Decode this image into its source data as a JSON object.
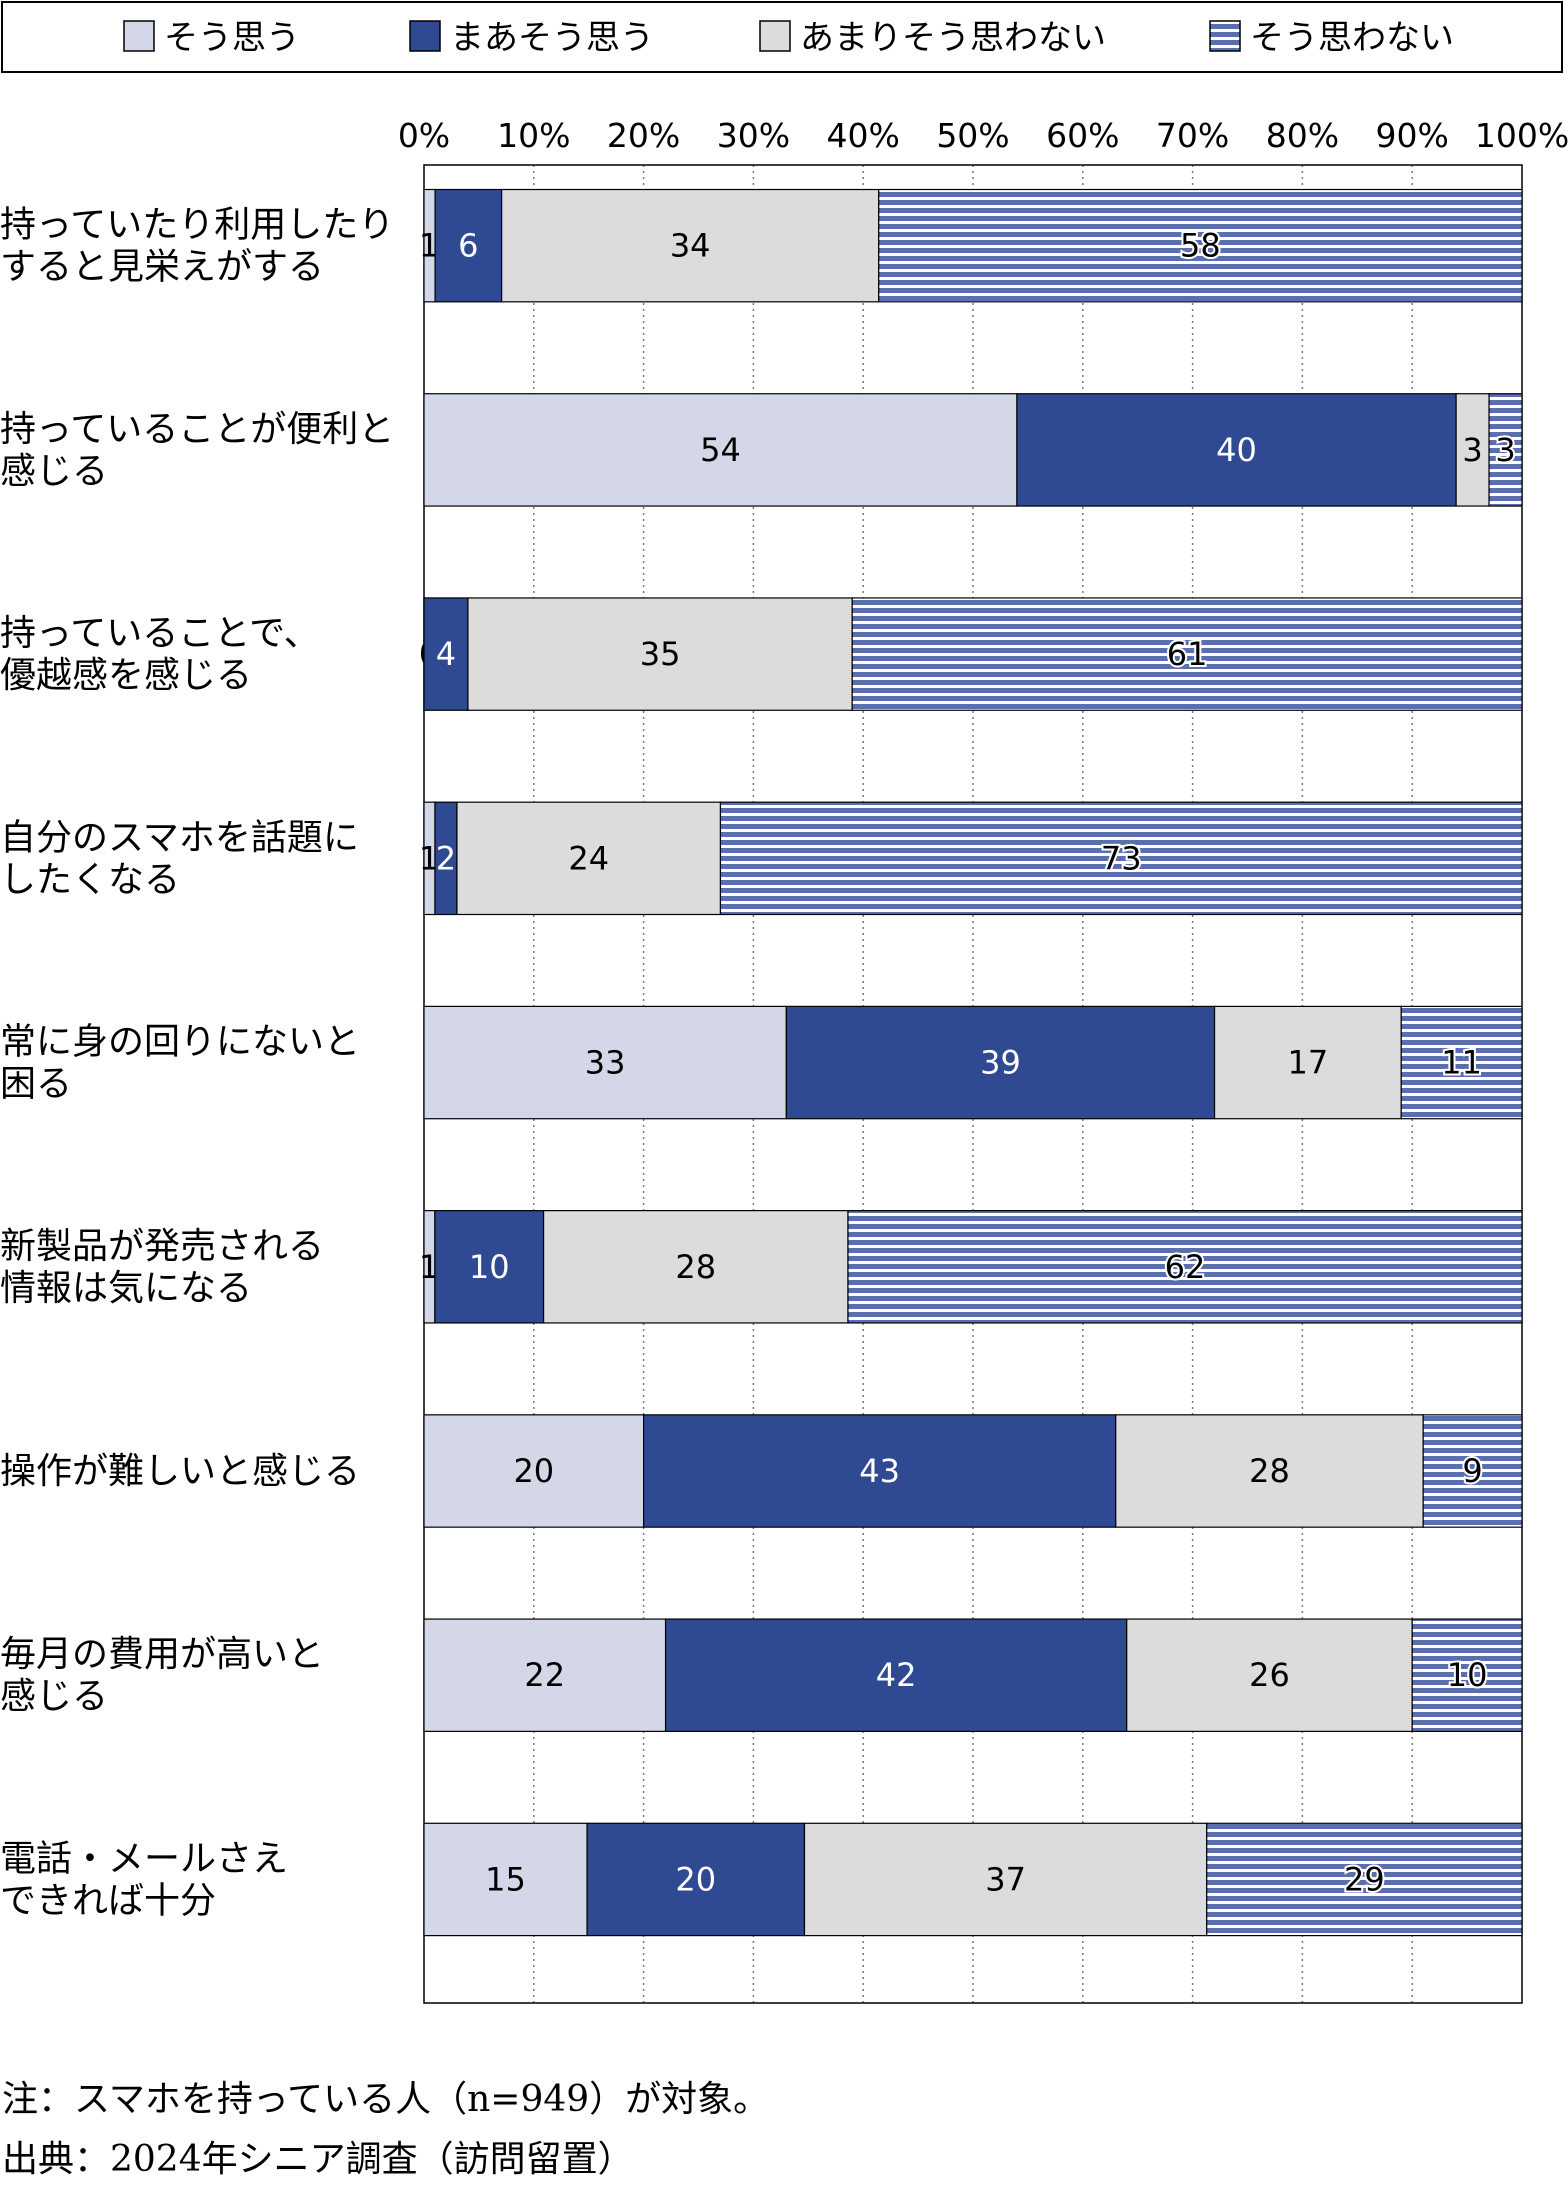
{
  "chart_data": {
    "type": "bar",
    "orientation": "horizontal",
    "stacked": true,
    "unit": "%",
    "xlim": [
      0,
      100
    ],
    "x_ticks": [
      "0%",
      "10%",
      "20%",
      "30%",
      "40%",
      "50%",
      "60%",
      "70%",
      "80%",
      "90%",
      "100%"
    ],
    "grid": true,
    "legend_position": "top",
    "categories": [
      [
        "持っていたり利用したり",
        "すると見栄えがする"
      ],
      [
        "持っていることが便利と",
        "感じる"
      ],
      [
        "持っていることで、",
        "優越感を感じる"
      ],
      [
        "自分のスマホを話題に",
        "したくなる"
      ],
      [
        "常に身の回りにないと",
        "困る"
      ],
      [
        "新製品が発売される",
        "情報は気になる"
      ],
      [
        "操作が難しいと感じる"
      ],
      [
        "毎月の費用が高いと",
        "感じる"
      ],
      [
        "電話・メールさえ",
        "できれば十分"
      ]
    ],
    "series": [
      {
        "name": "そう思う",
        "color": "#d3d7e8",
        "pattern": "solid",
        "label_color": "#000000",
        "values": [
          1,
          54,
          0,
          1,
          33,
          1,
          20,
          22,
          15
        ]
      },
      {
        "name": "まあそう思う",
        "color": "#2f4a92",
        "pattern": "solid",
        "label_color": "#ffffff",
        "values": [
          6,
          40,
          4,
          2,
          39,
          10,
          43,
          42,
          20
        ]
      },
      {
        "name": "あまりそう思わない",
        "color": "#dcdcdc",
        "pattern": "solid",
        "label_color": "#000000",
        "values": [
          34,
          3,
          35,
          24,
          17,
          28,
          28,
          26,
          37
        ]
      },
      {
        "name": "そう思わない",
        "color": "#5a6fad",
        "pattern": "horizontal-stripes",
        "label_color": "#000000",
        "values": [
          58,
          3,
          61,
          73,
          11,
          62,
          9,
          10,
          29
        ]
      }
    ]
  },
  "notes": [
    "注：スマホを持っている人（n=949）が対象。",
    "出典：2024年シニア調査（訪問留置）"
  ]
}
